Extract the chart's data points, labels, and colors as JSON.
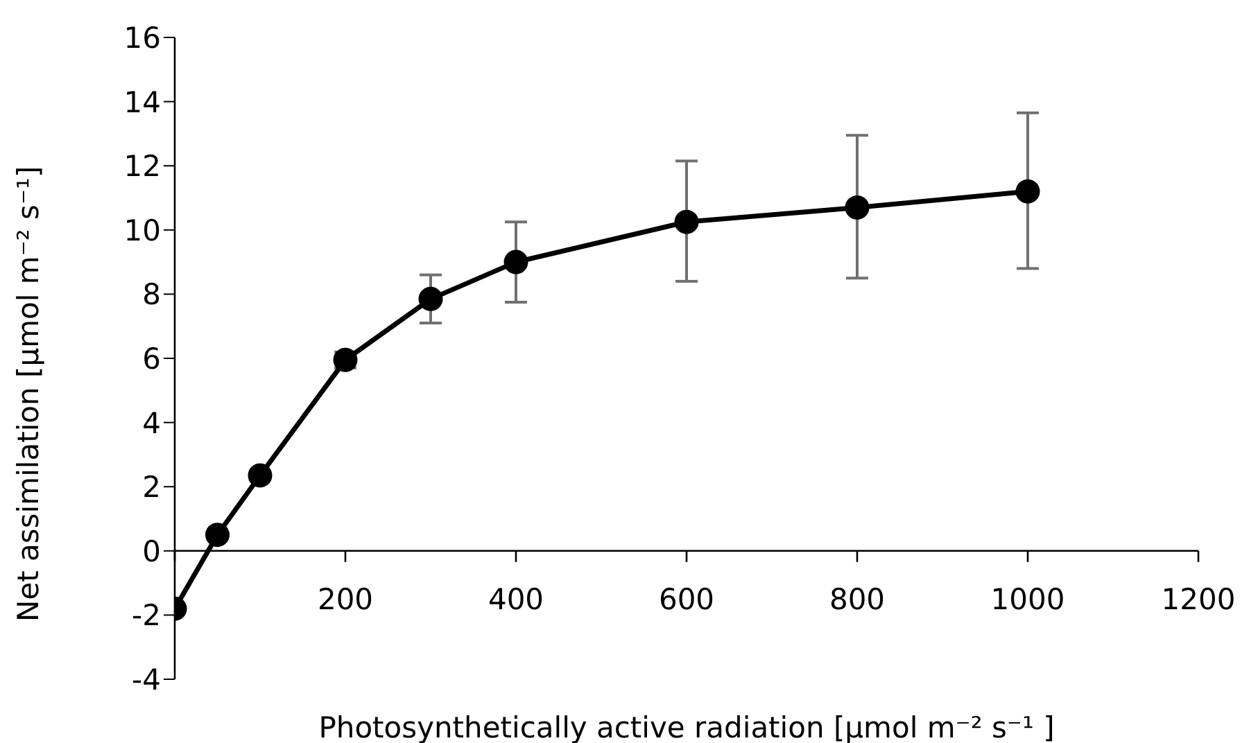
{
  "chart_data": {
    "type": "line",
    "xlabel": "Photosynthetically active radiation [µmol m⁻² s⁻¹ ]",
    "ylabel": "Net assimilation [µmol m⁻² s⁻¹]",
    "x": [
      0,
      50,
      100,
      200,
      300,
      400,
      600,
      800,
      1000
    ],
    "series": [
      {
        "color": "#000000",
        "values": [
          -1.8,
          0.5,
          2.35,
          5.95,
          7.85,
          9.0,
          10.25,
          10.7,
          11.2
        ],
        "errors": [
          null,
          null,
          null,
          [
            5.7,
            6.2
          ],
          [
            7.1,
            8.6
          ],
          [
            7.75,
            10.25
          ],
          [
            8.4,
            12.15
          ],
          [
            8.5,
            12.95
          ],
          [
            8.8,
            13.65
          ]
        ]
      }
    ],
    "xlim": [
      0,
      1200
    ],
    "xticks": [
      {
        "value": 0,
        "label": null
      },
      200,
      400,
      600,
      800,
      1000,
      1200
    ],
    "ylim": [
      -4,
      16
    ],
    "yticks": [
      -4,
      -2,
      0,
      2,
      4,
      6,
      8,
      10,
      12,
      14,
      16
    ],
    "marker": "circle",
    "line_style": "solid",
    "grid": false,
    "legend": false
  }
}
